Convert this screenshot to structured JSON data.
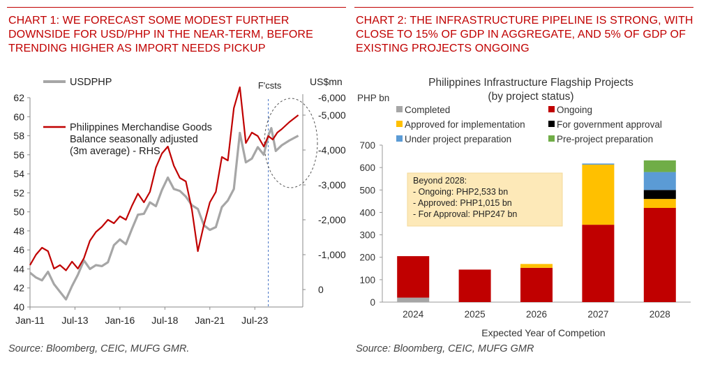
{
  "left": {
    "heading": "CHART 1: WE FORECAST SOME MODEST FURTHER DOWNSIDE FOR USD/PHP IN THE NEAR-TERM, BEFORE TRENDING HIGHER AS IMPORT NEEDS PICKUP",
    "source": "Source: Bloomberg, CEIC, MUFG GMR.",
    "rhs_unit": "US$mn",
    "forecast_label": "F'csts",
    "colors": {
      "usdphp": "#a6a6a6",
      "trade": "#c00000",
      "forecast_line": "#4472c4"
    }
  },
  "right": {
    "heading": "CHART 2: THE INFRASTRUCTURE PIPELINE IS STRONG, WITH CLOSE TO 15% OF GDP IN AGGREGATE, AND 5% OF GDP OF EXISTING PROJECTS ONGOING",
    "source": "Source: Bloomberg, CEIC, MUFG GMR",
    "title_line1": "Philippines Infrastructure Flagship Projects",
    "title_line2": "(by project status)",
    "annotation": {
      "title": "Beyond 2028:",
      "lines": [
        "- Ongoing: PHP2,533 bn",
        "- Approved: PHP1,015 bn",
        "- For Approval: PHP247 bn"
      ]
    }
  },
  "chart_data": [
    {
      "type": "line",
      "xlabel": "",
      "ylabel": "",
      "x_ticks": [
        "Jan-11",
        "Jul-13",
        "Jan-16",
        "Jul-18",
        "Jan-21",
        "Jul-23"
      ],
      "ylim": [
        40,
        62
      ],
      "y_ticks": [
        40,
        42,
        44,
        46,
        48,
        50,
        52,
        54,
        56,
        58,
        60,
        62
      ],
      "y2lim": [
        -5500,
        500
      ],
      "y2_ticks": [
        0,
        -1000,
        -2000,
        -3000,
        -4000,
        -5000,
        -6000
      ],
      "y2_tick_labels": [
        "0",
        "-1,000",
        "-2,000",
        "-3,000",
        "-4,000",
        "-5,000",
        "-6,000"
      ],
      "forecast_start": "2024-04",
      "series": [
        {
          "name": "USDPHP",
          "axis": "left",
          "x": [
            "2011-01",
            "2011-05",
            "2011-09",
            "2012-01",
            "2012-05",
            "2012-09",
            "2013-01",
            "2013-05",
            "2013-09",
            "2014-01",
            "2014-05",
            "2014-09",
            "2015-01",
            "2015-05",
            "2015-09",
            "2016-01",
            "2016-05",
            "2016-09",
            "2017-01",
            "2017-05",
            "2017-09",
            "2018-01",
            "2018-05",
            "2018-09",
            "2019-01",
            "2019-05",
            "2019-09",
            "2020-01",
            "2020-05",
            "2020-09",
            "2021-01",
            "2021-05",
            "2021-09",
            "2022-01",
            "2022-05",
            "2022-09",
            "2023-01",
            "2023-05",
            "2023-09",
            "2024-01",
            "2024-04",
            "2024-06",
            "2024-09",
            "2025-01",
            "2025-06",
            "2025-12"
          ],
          "values": [
            43.6,
            43.1,
            42.8,
            43.7,
            42.4,
            41.6,
            40.8,
            42.2,
            43.4,
            44.9,
            44.0,
            44.4,
            44.3,
            44.7,
            46.5,
            47.1,
            46.6,
            48.2,
            49.7,
            49.8,
            51.0,
            50.6,
            52.3,
            53.6,
            52.4,
            52.2,
            51.6,
            50.7,
            50.3,
            48.6,
            48.1,
            48.4,
            50.5,
            51.2,
            52.4,
            58.3,
            55.2,
            55.6,
            56.8,
            56.0,
            58.0,
            58.8,
            56.4,
            57.0,
            57.5,
            58.0
          ]
        },
        {
          "name": "Philippines Merchandise Goods Balance seasonally adjusted (3m average) - RHS",
          "axis": "right",
          "x": [
            "2011-01",
            "2011-05",
            "2011-09",
            "2012-01",
            "2012-05",
            "2012-09",
            "2013-01",
            "2013-05",
            "2013-09",
            "2014-01",
            "2014-05",
            "2014-09",
            "2015-01",
            "2015-05",
            "2015-09",
            "2016-01",
            "2016-05",
            "2016-09",
            "2017-01",
            "2017-05",
            "2017-09",
            "2018-01",
            "2018-05",
            "2018-09",
            "2019-01",
            "2019-05",
            "2019-09",
            "2020-01",
            "2020-05",
            "2020-09",
            "2021-01",
            "2021-05",
            "2021-09",
            "2022-01",
            "2022-05",
            "2022-09",
            "2023-01",
            "2023-05",
            "2023-09",
            "2024-01",
            "2024-04",
            "2024-07",
            "2024-10",
            "2025-01",
            "2025-06",
            "2025-12"
          ],
          "values": [
            -700,
            -1000,
            -1200,
            -1100,
            -600,
            -700,
            -550,
            -800,
            -600,
            -900,
            -1400,
            -1650,
            -1800,
            -2000,
            -1900,
            -2100,
            -2000,
            -2400,
            -2750,
            -2500,
            -2800,
            -3500,
            -3900,
            -4100,
            -3550,
            -3200,
            -3100,
            -2300,
            -1100,
            -1850,
            -2500,
            -2800,
            -3800,
            -3700,
            -5200,
            -5800,
            -4200,
            -4500,
            -4400,
            -4100,
            -4400,
            -4300,
            -4500,
            -4600,
            -4800,
            -5000
          ]
        }
      ]
    },
    {
      "type": "bar",
      "stacked": true,
      "title": "Philippines Infrastructure Flagship Projects (by project status)",
      "xlabel": "Expected Year of Competion",
      "ylabel": "PHP bn",
      "categories": [
        "2024",
        "2025",
        "2026",
        "2027",
        "2028"
      ],
      "ylim": [
        0,
        700
      ],
      "y_ticks": [
        0,
        100,
        200,
        300,
        400,
        500,
        600,
        700
      ],
      "legend_position": "top",
      "series": [
        {
          "name": "Completed",
          "color": "#a6a6a6",
          "values": [
            20,
            0,
            0,
            0,
            0
          ]
        },
        {
          "name": "Ongoing",
          "color": "#c00000",
          "values": [
            185,
            145,
            153,
            345,
            420
          ]
        },
        {
          "name": "Approved for implementation",
          "color": "#ffc000",
          "values": [
            0,
            0,
            17,
            268,
            40
          ]
        },
        {
          "name": "For government approval",
          "color": "#000000",
          "values": [
            0,
            0,
            0,
            0,
            40
          ]
        },
        {
          "name": "Under project preparation",
          "color": "#5b9bd5",
          "values": [
            0,
            0,
            0,
            5,
            80
          ]
        },
        {
          "name": "Pre-project preparation",
          "color": "#70ad47",
          "values": [
            0,
            0,
            0,
            0,
            52
          ]
        }
      ]
    }
  ]
}
